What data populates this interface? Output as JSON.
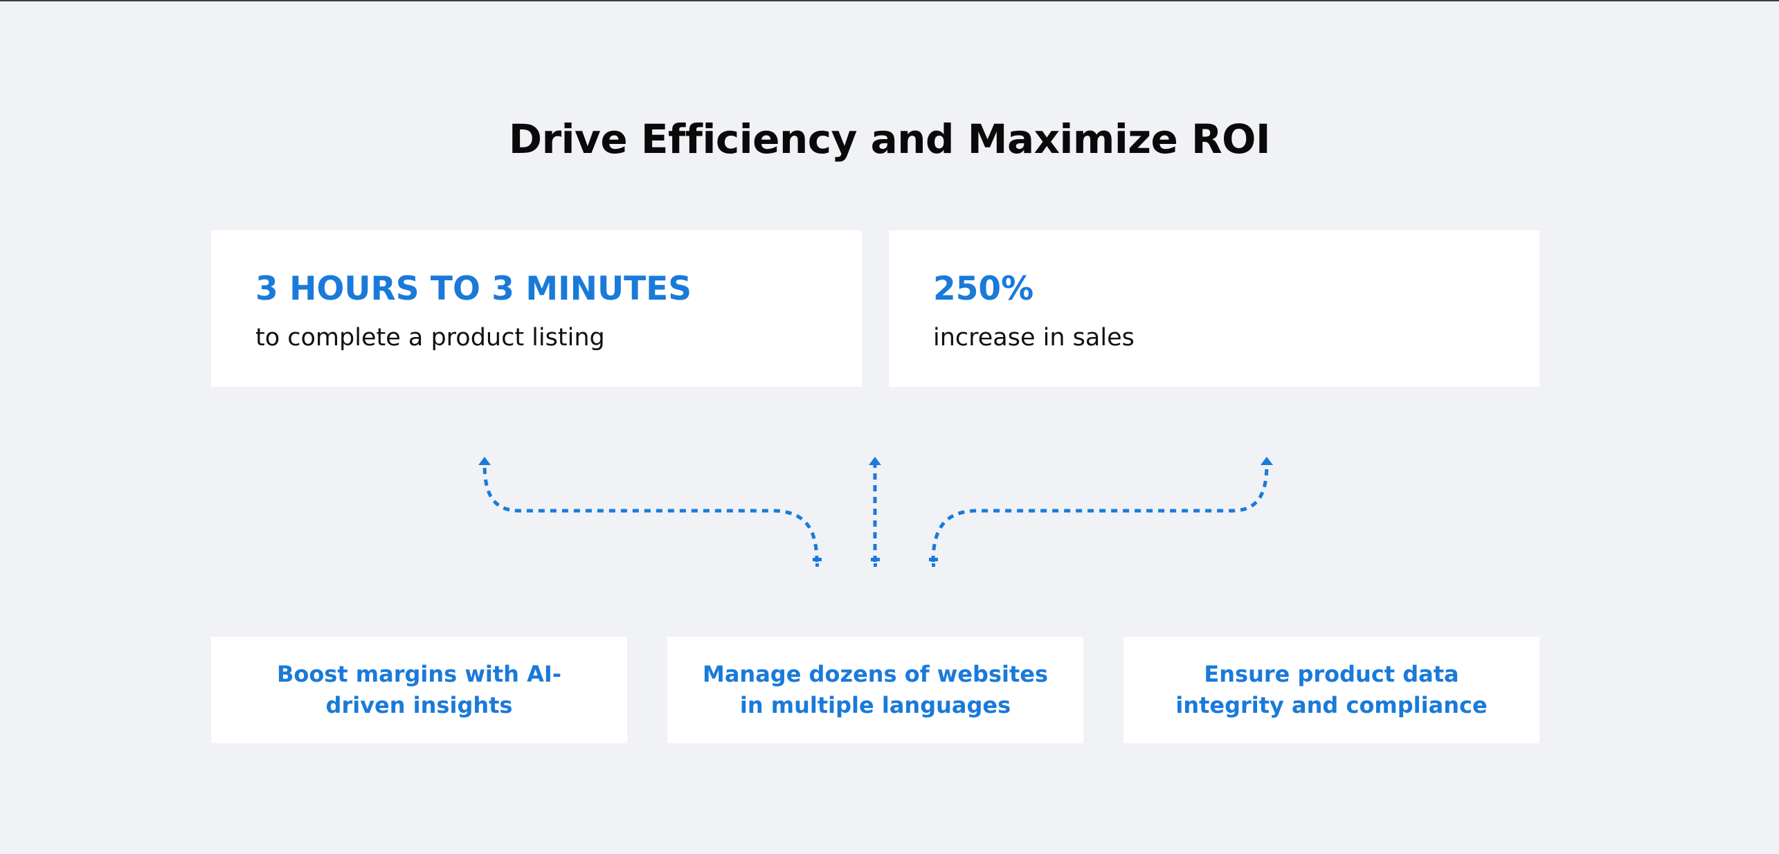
{
  "title": "Drive Efficiency and Maximize ROI",
  "accent_color": "#1a7ad9",
  "stats": [
    {
      "value": "3 HOURS TO 3 MINUTES",
      "description": "to complete a product listing"
    },
    {
      "value": "250%",
      "description": "increase in sales"
    }
  ],
  "features": [
    {
      "label": "Boost margins with AI-driven insights"
    },
    {
      "label": "Manage dozens of websites in multiple languages"
    },
    {
      "label": "Ensure product data integrity and compliance"
    }
  ],
  "connectors": {
    "style": "dotted",
    "icon": "arrow-up-icon"
  }
}
